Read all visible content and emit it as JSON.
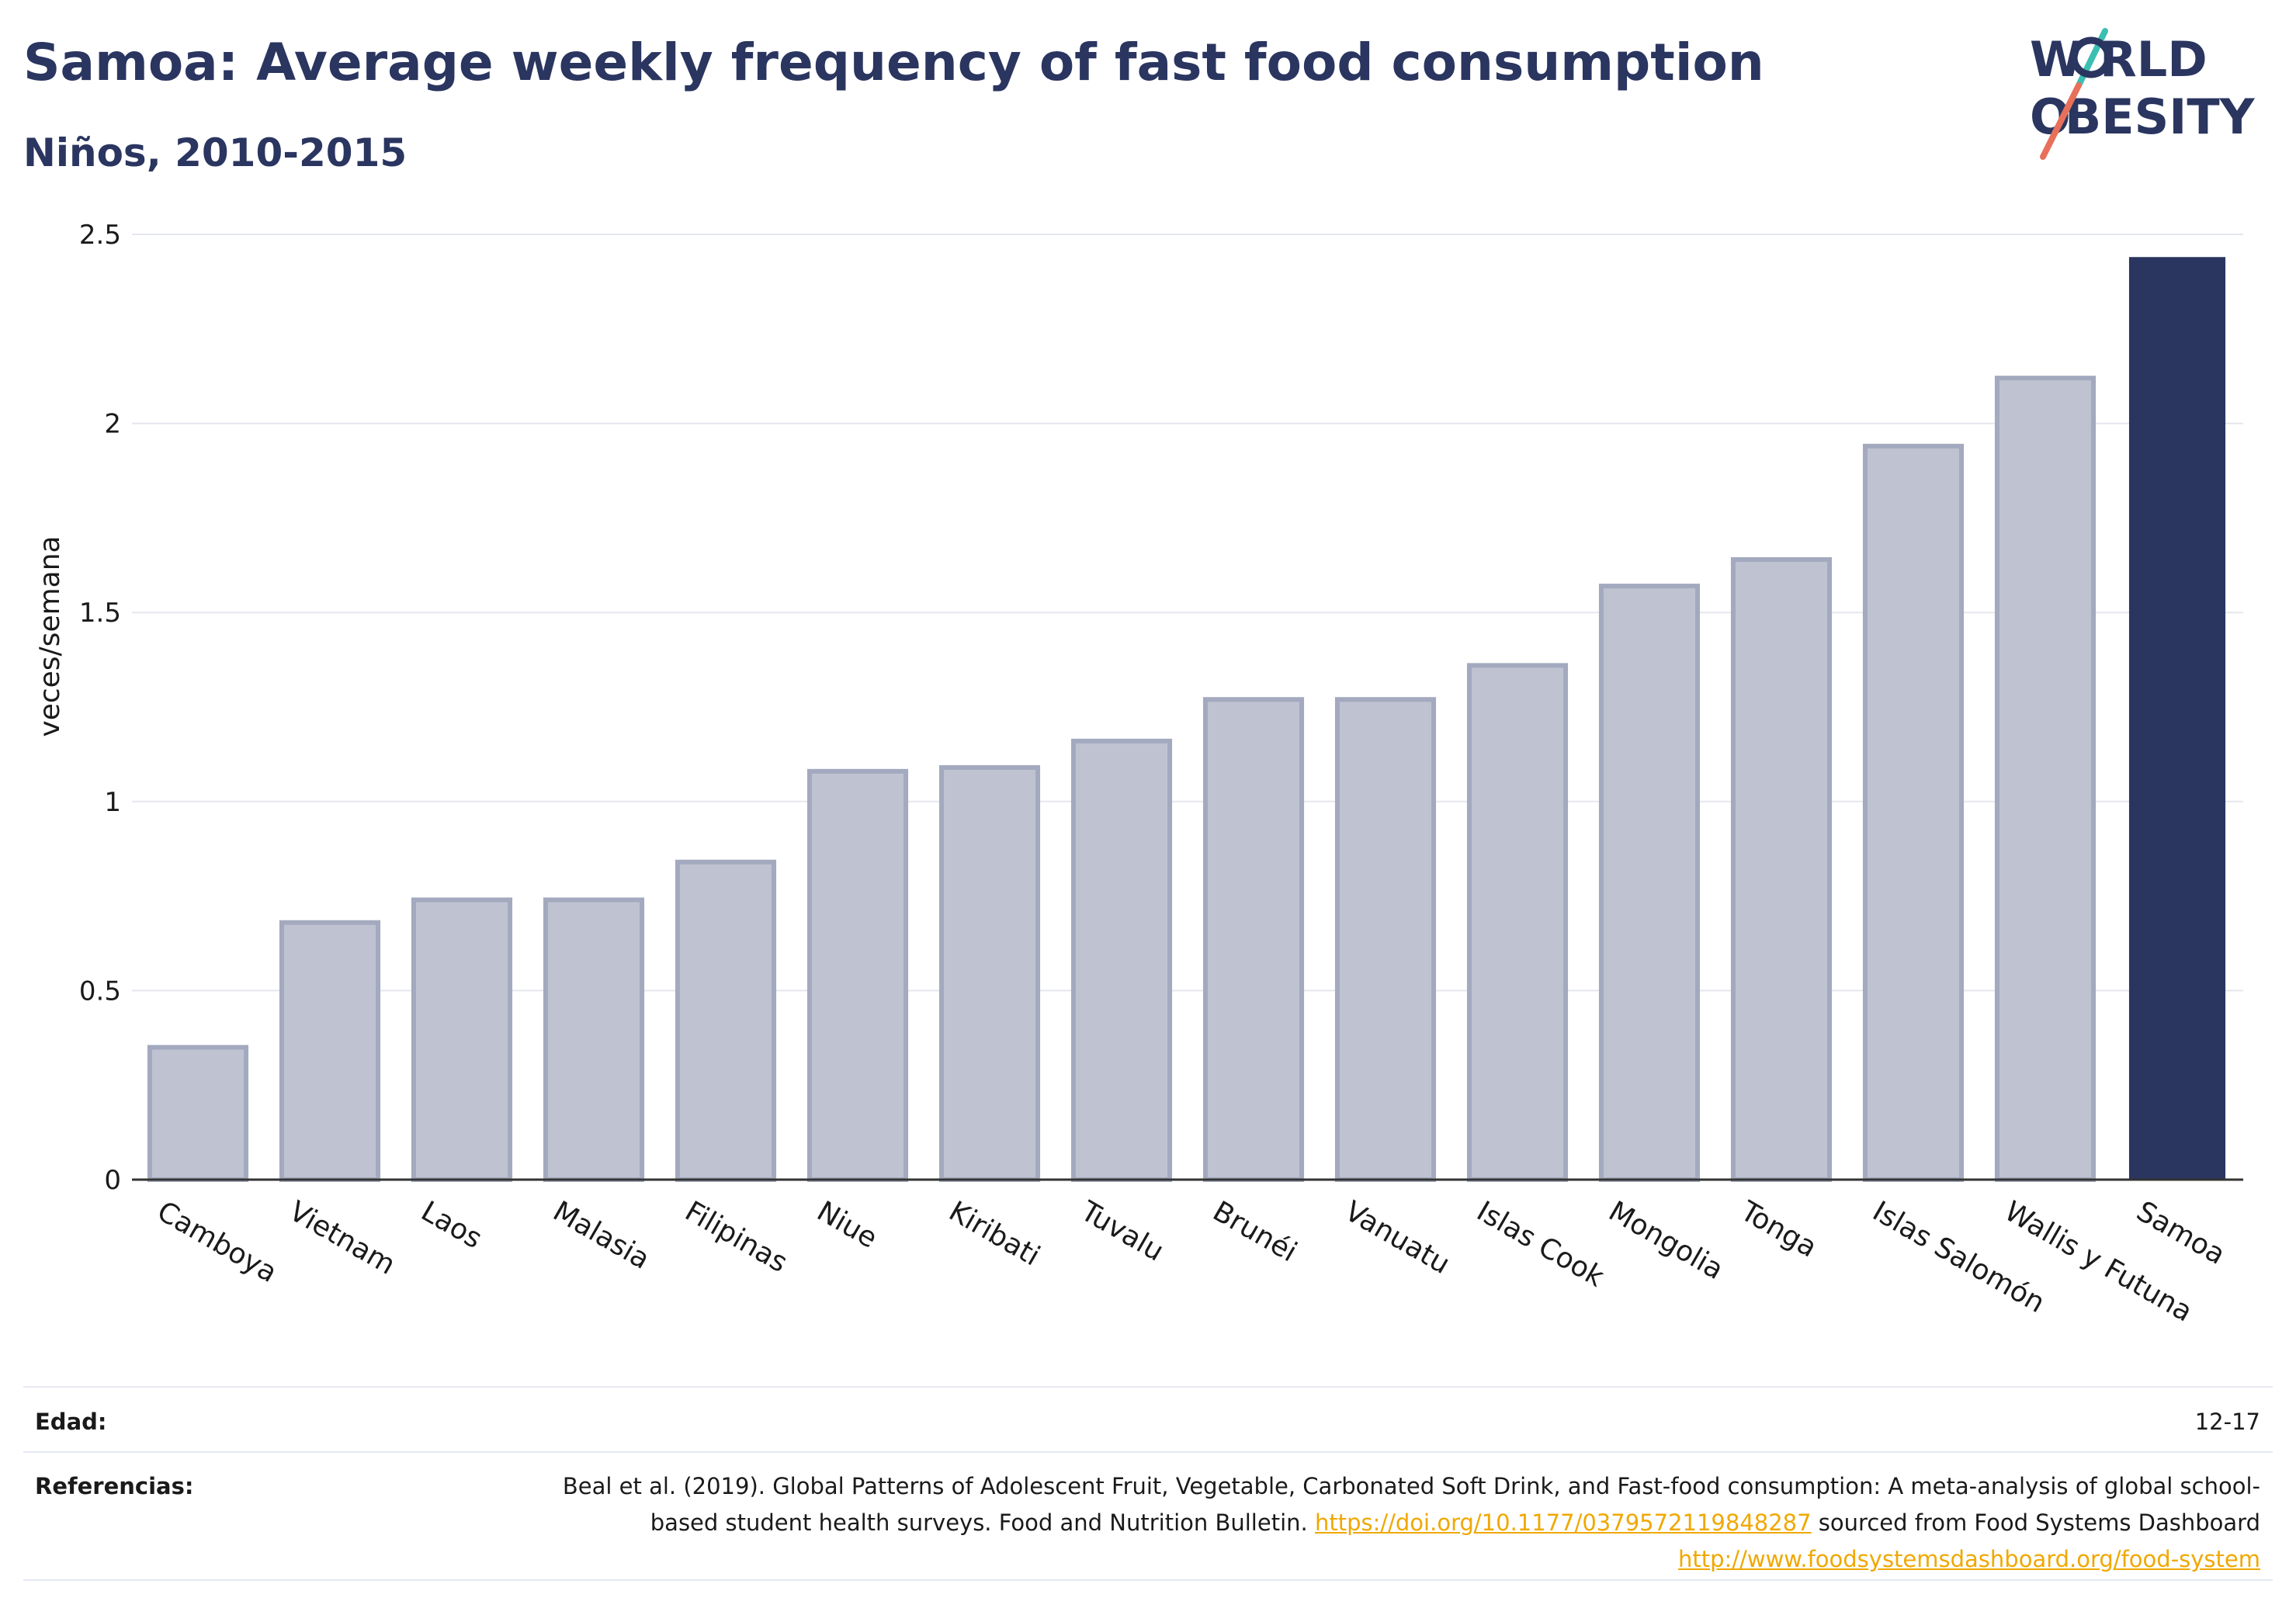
{
  "header": {
    "title": "Samoa: Average weekly frequency of fast food consumption",
    "subtitle": "Niños, 2010-2015"
  },
  "logo": {
    "line1": "W RLD",
    "line2": "BESITY",
    "accent_colors": [
      "#3bbfb2",
      "#e8705a"
    ],
    "text_color": "#2a3560"
  },
  "chart_data": {
    "type": "bar",
    "title": "Samoa: Average weekly frequency of fast food consumption",
    "subtitle": "Niños, 2010-2015",
    "xlabel": "",
    "ylabel": "veces/semana",
    "ylim": [
      0,
      2.5
    ],
    "yticks": [
      0,
      0.5,
      1,
      1.5,
      2,
      2.5
    ],
    "ytick_labels": [
      "0",
      "0.5",
      "1",
      "1.5",
      "2",
      "2.5"
    ],
    "grid": true,
    "categories": [
      "Camboya",
      "Vietnam",
      "Laos",
      "Malasia",
      "Filipinas",
      "Niue",
      "Kiribati",
      "Tuvalu",
      "Brunéi",
      "Vanuatu",
      "Islas Cook",
      "Mongolia",
      "Tonga",
      "Islas Salomón",
      "Wallis y Futuna",
      "Samoa"
    ],
    "values": [
      0.35,
      0.68,
      0.74,
      0.74,
      0.84,
      1.08,
      1.09,
      1.16,
      1.27,
      1.27,
      1.36,
      1.57,
      1.64,
      1.94,
      2.12,
      2.44
    ],
    "highlight": "Samoa",
    "colors": {
      "default_fill": "#bfc3d1",
      "default_stroke": "#a3a9be",
      "highlight_fill": "#2a3560",
      "axis": "#333333",
      "grid": "#e5e7ee"
    }
  },
  "footer": {
    "edad_label": "Edad:",
    "edad_value": "12-17",
    "referencias_label": "Referencias:",
    "ref_text_1": "Beal et al. (2019). Global Patterns of Adolescent Fruit, Vegetable, Carbonated Soft Drink, and Fast-food consumption: A meta-analysis of global school-based student health surveys. Food and Nutrition Bulletin. ",
    "ref_link_1": "https://doi.org/10.1177/0379572119848287",
    "ref_text_2": " sourced from Food Systems Dashboard ",
    "ref_link_2": "http://www.foodsystemsdashboard.org/food-system",
    "link_color": "#f0a800"
  }
}
